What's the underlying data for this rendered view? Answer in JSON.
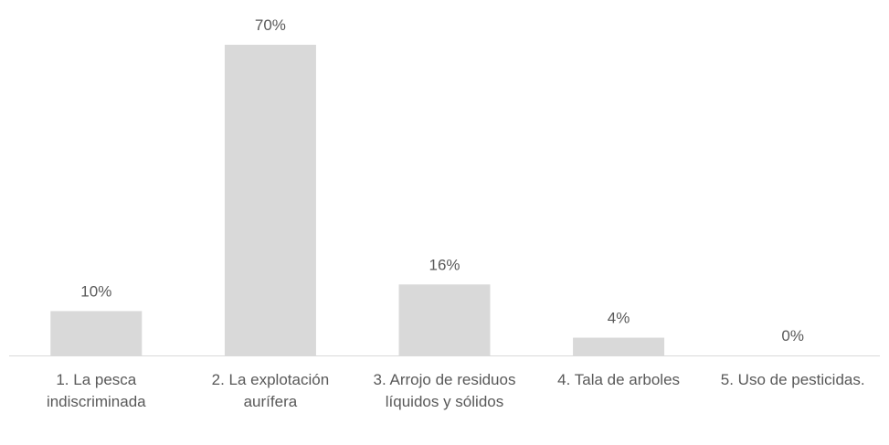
{
  "chart_data": {
    "type": "bar",
    "categories": [
      "1. La pesca indiscriminada",
      "2. La explotación aurífera",
      "3. Arrojo de residuos líquidos y sólidos",
      "4. Tala de arboles",
      "5. Uso de pesticidas."
    ],
    "values": [
      10,
      70,
      16,
      4,
      0
    ],
    "value_labels": [
      "10%",
      "70%",
      "16%",
      "4%",
      "0%"
    ],
    "color": "#d9d9d9"
  }
}
